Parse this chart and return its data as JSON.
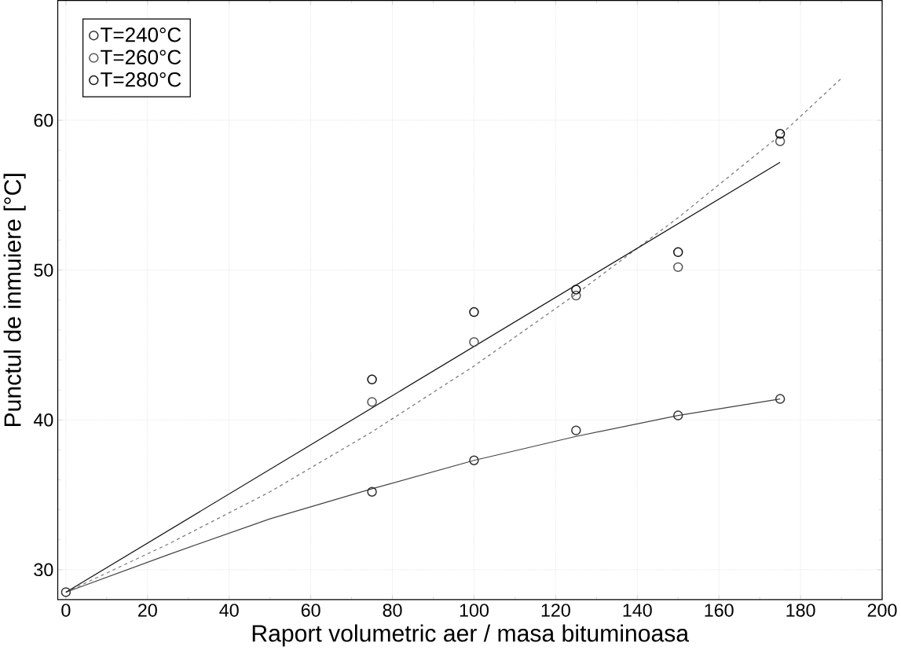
{
  "chart_data": {
    "type": "scatter",
    "xlabel": "Raport volumetric aer / masa bituminoasa",
    "ylabel": "Punctul de inmuiere [°C]",
    "xlim": [
      -2,
      200
    ],
    "ylim": [
      28,
      68
    ],
    "xticks": [
      0,
      20,
      40,
      60,
      80,
      100,
      120,
      140,
      160,
      180,
      200
    ],
    "yticks": [
      30,
      40,
      50,
      60
    ],
    "grid": true,
    "legend": "top left",
    "marker": "circle",
    "series": [
      {
        "name": "T=240°C",
        "color": "#333333",
        "x": [
          0,
          75,
          100,
          125,
          150,
          175
        ],
        "values": [
          28.5,
          35.2,
          37.3,
          39.3,
          40.3,
          41.4
        ]
      },
      {
        "name": "T=260°C",
        "color": "#555555",
        "x": [
          75,
          100,
          125,
          150,
          175
        ],
        "values": [
          41.2,
          45.2,
          48.3,
          50.2,
          58.6
        ]
      },
      {
        "name": "T=280°C",
        "color": "#111111",
        "x": [
          75,
          100,
          125,
          150,
          175
        ],
        "values": [
          42.7,
          47.2,
          48.7,
          51.2,
          59.1
        ]
      },
      {
        "type": "line",
        "color": "#444444",
        "marker": "none",
        "line_style": "solid",
        "x": [
          0,
          25,
          50,
          75,
          100,
          125,
          150,
          175
        ],
        "values": [
          28.5,
          31,
          33.4,
          35.4,
          37.3,
          38.9,
          40.3,
          41.4
        ]
      },
      {
        "type": "line",
        "color": "#777777",
        "marker": "none",
        "line_style": "dashed",
        "x": [
          0,
          25,
          50,
          75,
          100,
          125,
          150,
          175,
          190
        ],
        "values": [
          28.5,
          31.7,
          35.2,
          39.2,
          43.6,
          48.4,
          53.5,
          59,
          62.8
        ]
      },
      {
        "type": "line",
        "color": "#111111",
        "marker": "none",
        "line_style": "solid",
        "x": [
          0,
          175
        ],
        "values": [
          28.5,
          57.2
        ]
      }
    ]
  }
}
